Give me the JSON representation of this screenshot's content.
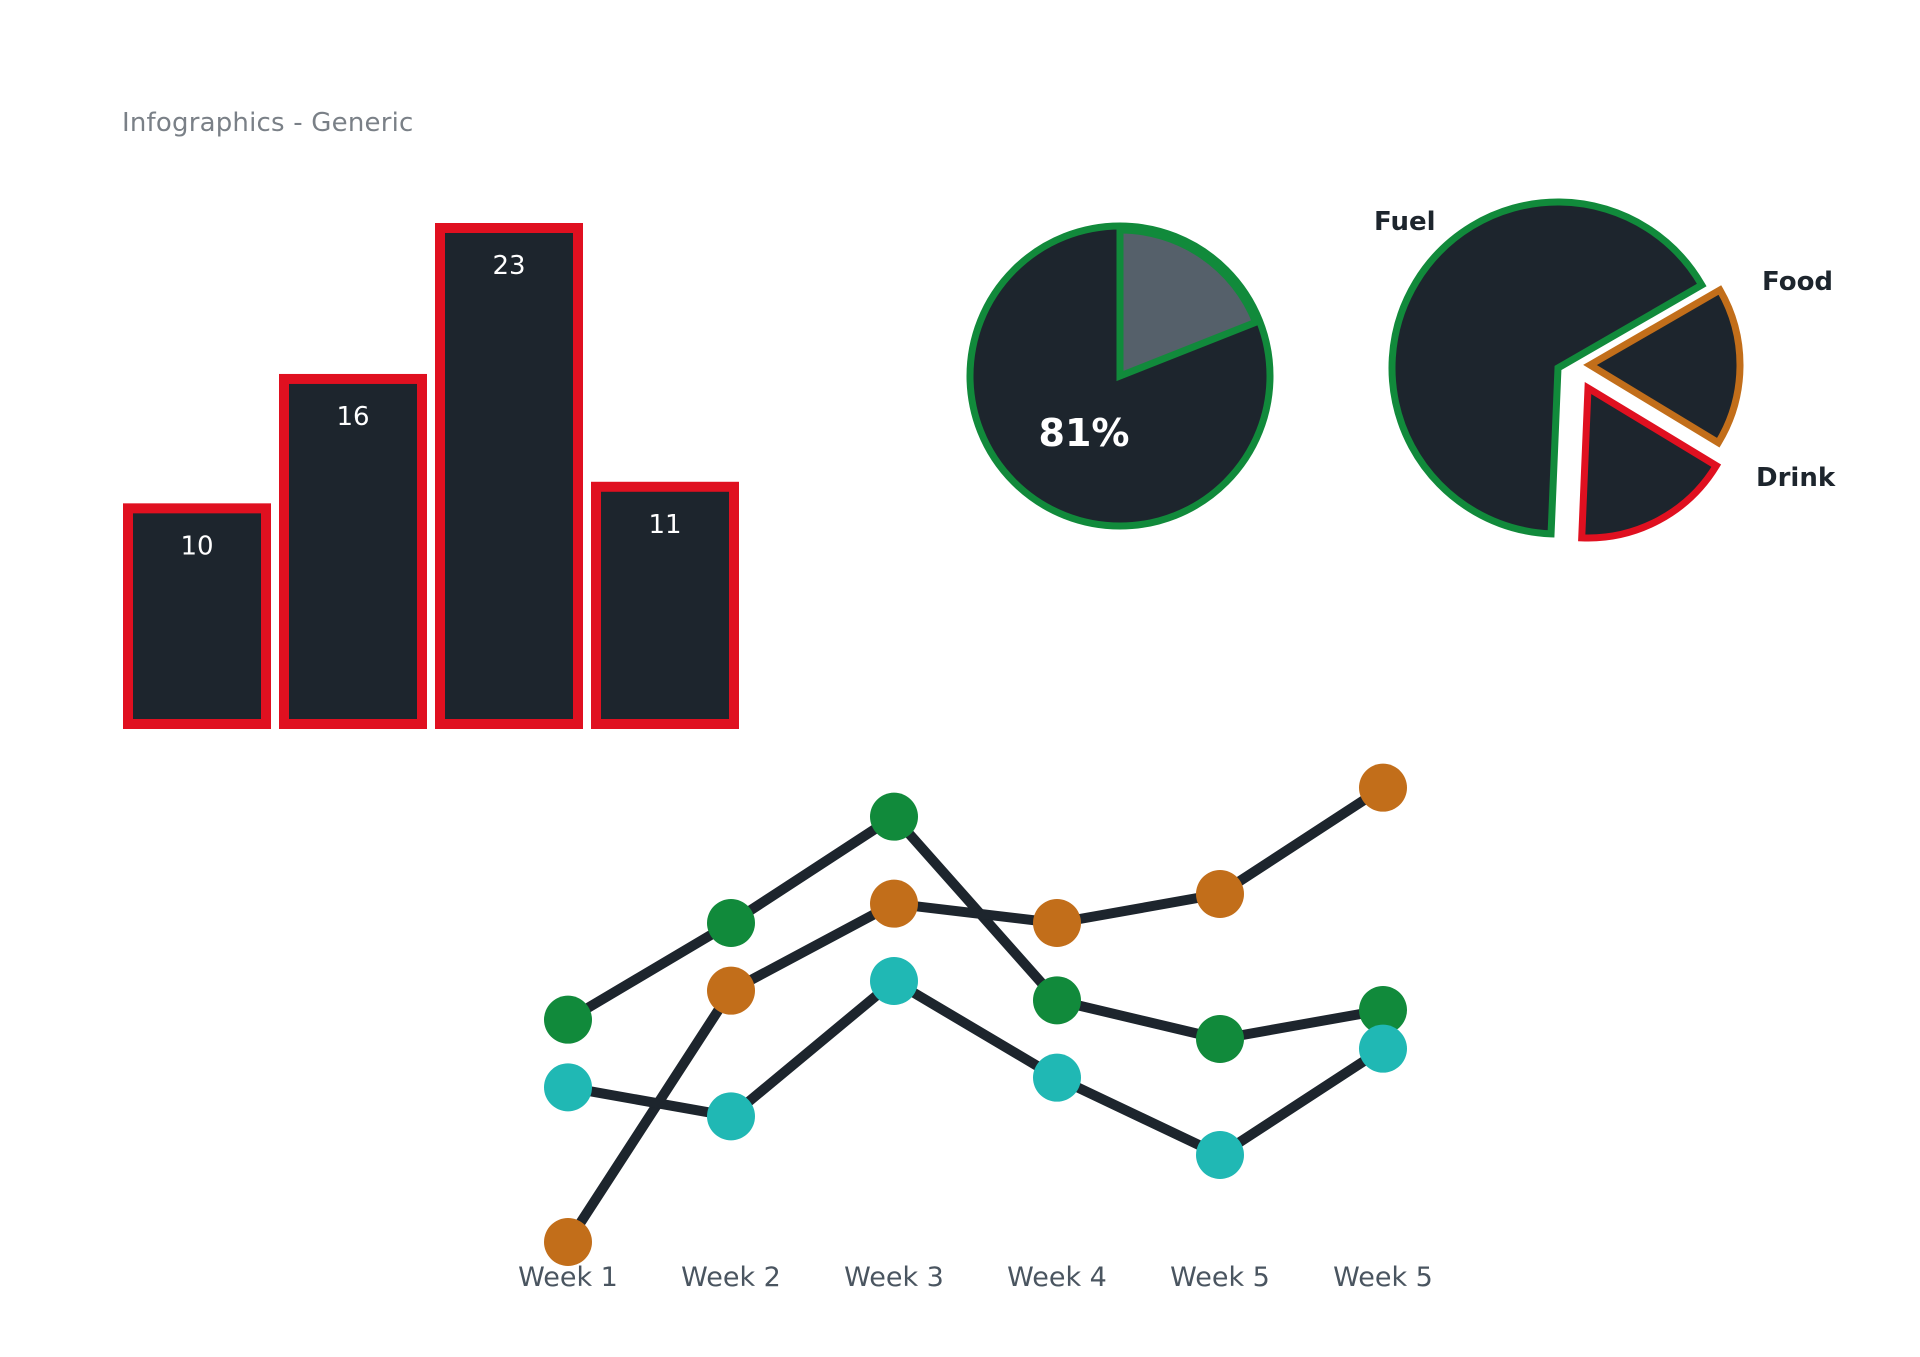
{
  "page": {
    "title": "Infographics - Generic"
  },
  "colors": {
    "dark": "#1d252d",
    "red": "#e01020",
    "green": "#118a3b",
    "orange": "#c26e1a",
    "teal": "#20b8b4",
    "slate": "#55606a"
  },
  "chart_data": [
    {
      "type": "bar",
      "categories": [
        "",
        "",
        "",
        ""
      ],
      "values": [
        10,
        16,
        23,
        11
      ],
      "value_labels": [
        "10",
        "16",
        "23",
        "11"
      ],
      "title": "",
      "xlabel": "",
      "ylabel": "",
      "ylim": [
        0,
        23
      ]
    },
    {
      "type": "pie",
      "labels": [
        "",
        ""
      ],
      "values": [
        81,
        19
      ],
      "center_label": "81%",
      "title": ""
    },
    {
      "type": "pie",
      "labels": [
        "Fuel",
        "Food",
        "Drink"
      ],
      "values": [
        66,
        17,
        17
      ],
      "exploded": [
        false,
        true,
        true
      ],
      "title": ""
    },
    {
      "type": "line",
      "categories": [
        "Week 1",
        "Week 2",
        "Week 3",
        "Week 4",
        "Week 5",
        "Week 5"
      ],
      "series": [
        {
          "color": "#118a3b",
          "values": [
            49,
            59,
            70,
            51,
            47,
            50
          ]
        },
        {
          "color": "#c26e1a",
          "values": [
            26,
            52,
            61,
            59,
            62,
            73
          ]
        },
        {
          "color": "#20b8b4",
          "values": [
            42,
            39,
            53,
            43,
            35,
            46
          ]
        }
      ],
      "ylim": [
        20,
        80
      ],
      "title": "",
      "xlabel": "",
      "ylabel": ""
    }
  ]
}
